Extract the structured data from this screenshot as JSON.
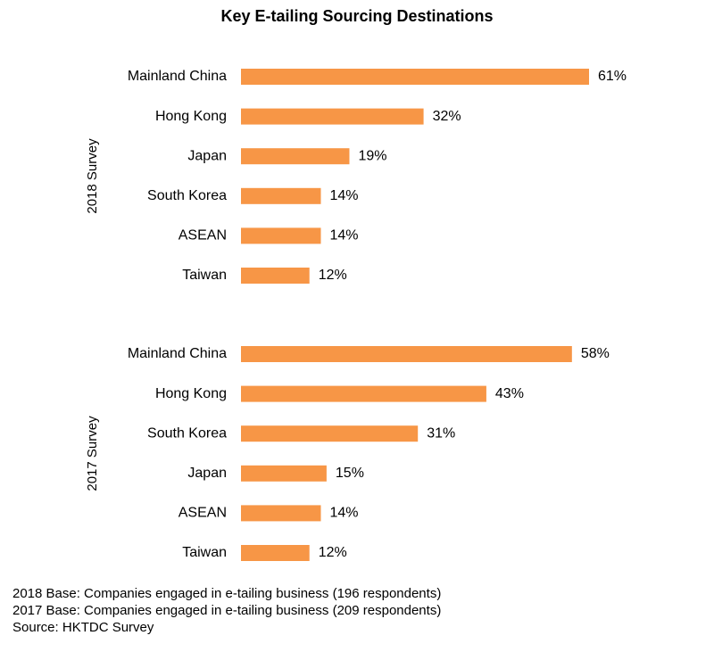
{
  "chart_data": {
    "type": "bar",
    "orientation": "horizontal",
    "title": "Key E-tailing Sourcing Destinations",
    "bar_color": "#F79646",
    "value_suffix": "%",
    "xlim": [
      0,
      61
    ],
    "grid": false,
    "groups": [
      {
        "name": "2018 Survey",
        "categories": [
          "Mainland China",
          "Hong Kong",
          "Japan",
          "South Korea",
          "ASEAN",
          "Taiwan"
        ],
        "values": [
          61,
          32,
          19,
          14,
          14,
          12
        ],
        "labels": [
          "61%",
          "32%",
          "19%",
          "14%",
          "14%",
          "12%"
        ]
      },
      {
        "name": "2017 Survey",
        "categories": [
          "Mainland China",
          "Hong Kong",
          "South Korea",
          "Japan",
          "ASEAN",
          "Taiwan"
        ],
        "values": [
          58,
          43,
          31,
          15,
          14,
          12
        ],
        "labels": [
          "58%",
          "43%",
          "31%",
          "15%",
          "14%",
          "12%"
        ]
      }
    ]
  },
  "notes": {
    "base_2018": "2018 Base: Companies engaged in e-tailing business (196 respondents)",
    "base_2017": "2017 Base: Companies engaged in e-tailing business (209 respondents)",
    "source": "Source: HKTDC Survey"
  }
}
